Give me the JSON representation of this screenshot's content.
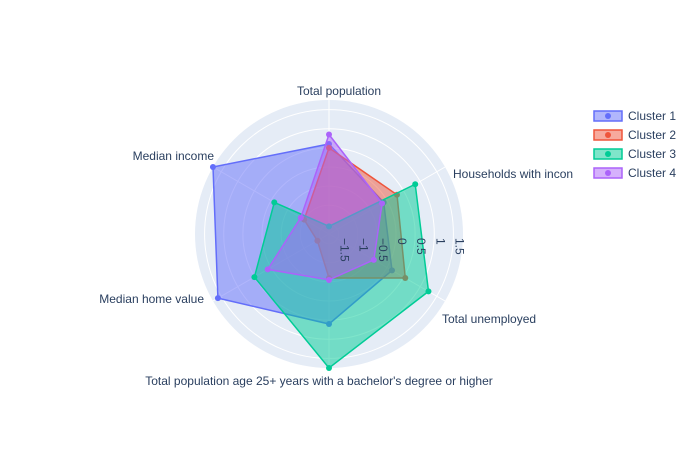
{
  "chart_data": {
    "type": "radar",
    "axes": [
      "Total population",
      "Households with income",
      "Total unemployed",
      "Total population age 25+ years with a bachelor's degree or higher",
      "Median home value",
      "Median income"
    ],
    "axis_label_display": [
      "Total population",
      "Households with incon",
      "Total unemployed",
      "Total population age 25+ years with a bachelor's degree or higher",
      "Median home value",
      "Median income"
    ],
    "radial_ticks": [
      "−1.5",
      "−1",
      "−0.5",
      "0",
      "0.5",
      "1",
      "1.5"
    ],
    "radial_tick_values": [
      -1.5,
      -1,
      -0.5,
      0,
      0.5,
      1,
      1.5
    ],
    "radial_range": [
      -1.75,
      1.75
    ],
    "legend_position": "top-right",
    "series": [
      {
        "name": "Cluster 1",
        "color": "#636efa",
        "values": [
          0.6,
          -0.1,
          0.15,
          0.6,
          1.6,
          1.75
        ]
      },
      {
        "name": "Cluster 2",
        "color": "#ef553b",
        "values": [
          0.5,
          0.3,
          0.55,
          -0.6,
          -1.4,
          -1.0
        ]
      },
      {
        "name": "Cluster 3",
        "color": "#00cc96",
        "values": [
          -1.55,
          0.85,
          1.25,
          1.75,
          0.5,
          -0.1
        ]
      },
      {
        "name": "Cluster 4",
        "color": "#ab63fa",
        "values": [
          0.85,
          -0.15,
          -0.4,
          -0.55,
          0.1,
          -0.9
        ]
      }
    ]
  }
}
